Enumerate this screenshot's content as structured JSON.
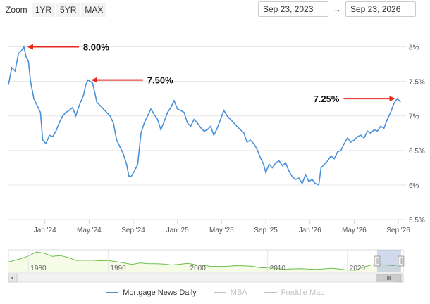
{
  "zoom": {
    "label": "Zoom",
    "buttons": [
      "1YR",
      "5YR",
      "MAX"
    ]
  },
  "range": {
    "from": "Sep 23, 2023",
    "arrow": "→",
    "to": "Sep 23, 2026"
  },
  "colors": {
    "series": "#4a90d9",
    "navigator": "#6cbf4a",
    "annotation": "#e8281e",
    "grid": "#e6e6e6",
    "inactive": "#c2c2c2"
  },
  "chart_data": {
    "type": "line",
    "series": [
      {
        "name": "Mortgage News Daily",
        "active": true
      },
      {
        "name": "MBA",
        "active": false
      },
      {
        "name": "Freddie Mac",
        "active": false
      }
    ],
    "ylim": [
      5.5,
      8.25
    ],
    "yticks": [
      "8%",
      "7.5%",
      "7%",
      "6.5%",
      "6%",
      "5.5%"
    ],
    "ytick_values": [
      8,
      7.5,
      7,
      6.5,
      6,
      5.5
    ],
    "xticks": [
      "Jan '24",
      "May '24",
      "Sep '24",
      "Jan '25",
      "May '25",
      "Sep '25",
      "Jan '26",
      "May '26",
      "Sep '26"
    ],
    "xtick_months": [
      3.3,
      7.3,
      11.3,
      15.3,
      19.3,
      23.3,
      27.3,
      31.3,
      35.3
    ],
    "xlim_months": [
      0,
      36
    ],
    "points": [
      [
        0.0,
        7.45
      ],
      [
        0.3,
        7.7
      ],
      [
        0.6,
        7.65
      ],
      [
        0.9,
        7.9
      ],
      [
        1.2,
        7.95
      ],
      [
        1.4,
        8.0
      ],
      [
        1.6,
        7.85
      ],
      [
        1.8,
        7.8
      ],
      [
        2.0,
        7.5
      ],
      [
        2.3,
        7.25
      ],
      [
        2.6,
        7.15
      ],
      [
        2.9,
        7.05
      ],
      [
        3.1,
        6.65
      ],
      [
        3.4,
        6.6
      ],
      [
        3.7,
        6.72
      ],
      [
        4.0,
        6.7
      ],
      [
        4.3,
        6.78
      ],
      [
        4.6,
        6.9
      ],
      [
        4.9,
        7.0
      ],
      [
        5.2,
        7.05
      ],
      [
        5.5,
        7.08
      ],
      [
        5.8,
        7.12
      ],
      [
        6.1,
        7.0
      ],
      [
        6.4,
        7.15
      ],
      [
        6.8,
        7.3
      ],
      [
        7.0,
        7.45
      ],
      [
        7.2,
        7.52
      ],
      [
        7.4,
        7.5
      ],
      [
        7.6,
        7.48
      ],
      [
        7.8,
        7.35
      ],
      [
        8.0,
        7.2
      ],
      [
        8.3,
        7.15
      ],
      [
        8.6,
        7.1
      ],
      [
        8.9,
        7.05
      ],
      [
        9.2,
        7.0
      ],
      [
        9.5,
        6.9
      ],
      [
        9.8,
        6.65
      ],
      [
        10.1,
        6.55
      ],
      [
        10.4,
        6.45
      ],
      [
        10.7,
        6.3
      ],
      [
        10.9,
        6.13
      ],
      [
        11.1,
        6.12
      ],
      [
        11.4,
        6.2
      ],
      [
        11.7,
        6.3
      ],
      [
        12.0,
        6.75
      ],
      [
        12.3,
        6.9
      ],
      [
        12.6,
        7.0
      ],
      [
        12.9,
        7.1
      ],
      [
        13.2,
        7.02
      ],
      [
        13.5,
        6.95
      ],
      [
        13.8,
        6.8
      ],
      [
        14.1,
        6.92
      ],
      [
        14.4,
        7.05
      ],
      [
        14.7,
        7.12
      ],
      [
        15.0,
        7.22
      ],
      [
        15.3,
        7.1
      ],
      [
        15.6,
        7.08
      ],
      [
        15.9,
        7.05
      ],
      [
        16.2,
        6.9
      ],
      [
        16.5,
        6.85
      ],
      [
        16.8,
        6.95
      ],
      [
        17.1,
        6.9
      ],
      [
        17.4,
        6.83
      ],
      [
        17.7,
        6.78
      ],
      [
        18.0,
        6.8
      ],
      [
        18.3,
        6.85
      ],
      [
        18.6,
        6.72
      ],
      [
        18.9,
        6.82
      ],
      [
        19.2,
        6.95
      ],
      [
        19.5,
        7.08
      ],
      [
        19.8,
        7.0
      ],
      [
        20.1,
        6.95
      ],
      [
        20.4,
        6.9
      ],
      [
        20.7,
        6.85
      ],
      [
        21.0,
        6.8
      ],
      [
        21.3,
        6.76
      ],
      [
        21.6,
        6.62
      ],
      [
        21.9,
        6.65
      ],
      [
        22.2,
        6.6
      ],
      [
        22.5,
        6.52
      ],
      [
        22.8,
        6.4
      ],
      [
        23.1,
        6.3
      ],
      [
        23.3,
        6.18
      ],
      [
        23.6,
        6.3
      ],
      [
        23.9,
        6.25
      ],
      [
        24.2,
        6.32
      ],
      [
        24.5,
        6.35
      ],
      [
        24.8,
        6.28
      ],
      [
        25.1,
        6.32
      ],
      [
        25.4,
        6.2
      ],
      [
        25.7,
        6.12
      ],
      [
        26.0,
        6.08
      ],
      [
        26.3,
        6.1
      ],
      [
        26.6,
        6.02
      ],
      [
        26.9,
        6.15
      ],
      [
        27.2,
        6.05
      ],
      [
        27.5,
        6.08
      ],
      [
        27.8,
        6.02
      ],
      [
        28.1,
        6.0
      ],
      [
        28.3,
        6.25
      ],
      [
        28.6,
        6.3
      ],
      [
        28.9,
        6.35
      ],
      [
        29.2,
        6.42
      ],
      [
        29.5,
        6.38
      ],
      [
        29.8,
        6.48
      ],
      [
        30.1,
        6.5
      ],
      [
        30.4,
        6.6
      ],
      [
        30.7,
        6.68
      ],
      [
        31.0,
        6.62
      ],
      [
        31.3,
        6.65
      ],
      [
        31.6,
        6.7
      ],
      [
        31.9,
        6.72
      ],
      [
        32.2,
        6.68
      ],
      [
        32.5,
        6.78
      ],
      [
        32.8,
        6.75
      ],
      [
        33.1,
        6.8
      ],
      [
        33.4,
        6.78
      ],
      [
        33.7,
        6.85
      ],
      [
        34.0,
        6.82
      ],
      [
        34.3,
        6.95
      ],
      [
        34.6,
        7.05
      ],
      [
        34.9,
        7.18
      ],
      [
        35.2,
        7.25
      ],
      [
        35.5,
        7.2
      ]
    ],
    "annotations": [
      {
        "label": "8.00%",
        "month": 1.4,
        "value": 8.0,
        "side": "right"
      },
      {
        "label": "7.50%",
        "month": 7.2,
        "value": 7.52,
        "side": "right"
      },
      {
        "label": "7.25%",
        "month": 35.2,
        "value": 7.25,
        "side": "left"
      }
    ],
    "navigator": {
      "labels": [
        "1980",
        "1990",
        "2000",
        "2010",
        "2020"
      ],
      "label_years": [
        1980,
        1990,
        2000,
        2010,
        2020
      ],
      "year_range": [
        1977.5,
        2027
      ],
      "selection_years": [
        2023.72,
        2026.72
      ],
      "points": [
        [
          1977.5,
          9.0
        ],
        [
          1979,
          11.5
        ],
        [
          1980,
          13.5
        ],
        [
          1981,
          16.5
        ],
        [
          1982,
          15.5
        ],
        [
          1983,
          13.2
        ],
        [
          1984,
          13.8
        ],
        [
          1985,
          12.4
        ],
        [
          1986,
          10.2
        ],
        [
          1987,
          10.3
        ],
        [
          1988,
          10.3
        ],
        [
          1989,
          10.0
        ],
        [
          1990,
          10.1
        ],
        [
          1991,
          9.3
        ],
        [
          1992,
          8.4
        ],
        [
          1993,
          7.3
        ],
        [
          1994,
          8.4
        ],
        [
          1995,
          7.9
        ],
        [
          1996,
          7.8
        ],
        [
          1997,
          7.6
        ],
        [
          1998,
          6.9
        ],
        [
          1999,
          7.4
        ],
        [
          2000,
          8.1
        ],
        [
          2001,
          7.0
        ],
        [
          2002,
          6.5
        ],
        [
          2003,
          5.8
        ],
        [
          2004,
          5.8
        ],
        [
          2005,
          5.9
        ],
        [
          2006,
          6.4
        ],
        [
          2007,
          6.3
        ],
        [
          2008,
          6.0
        ],
        [
          2009,
          5.0
        ],
        [
          2010,
          4.7
        ],
        [
          2011,
          4.5
        ],
        [
          2012,
          3.7
        ],
        [
          2013,
          4.0
        ],
        [
          2014,
          4.2
        ],
        [
          2015,
          3.9
        ],
        [
          2016,
          3.7
        ],
        [
          2017,
          4.0
        ],
        [
          2018,
          4.5
        ],
        [
          2019,
          3.9
        ],
        [
          2020,
          3.1
        ],
        [
          2021,
          3.0
        ],
        [
          2022,
          5.3
        ],
        [
          2023,
          6.8
        ],
        [
          2023.8,
          7.6
        ],
        [
          2024.3,
          6.9
        ],
        [
          2025,
          6.8
        ],
        [
          2025.7,
          6.4
        ],
        [
          2026.7,
          7.2
        ]
      ]
    }
  }
}
